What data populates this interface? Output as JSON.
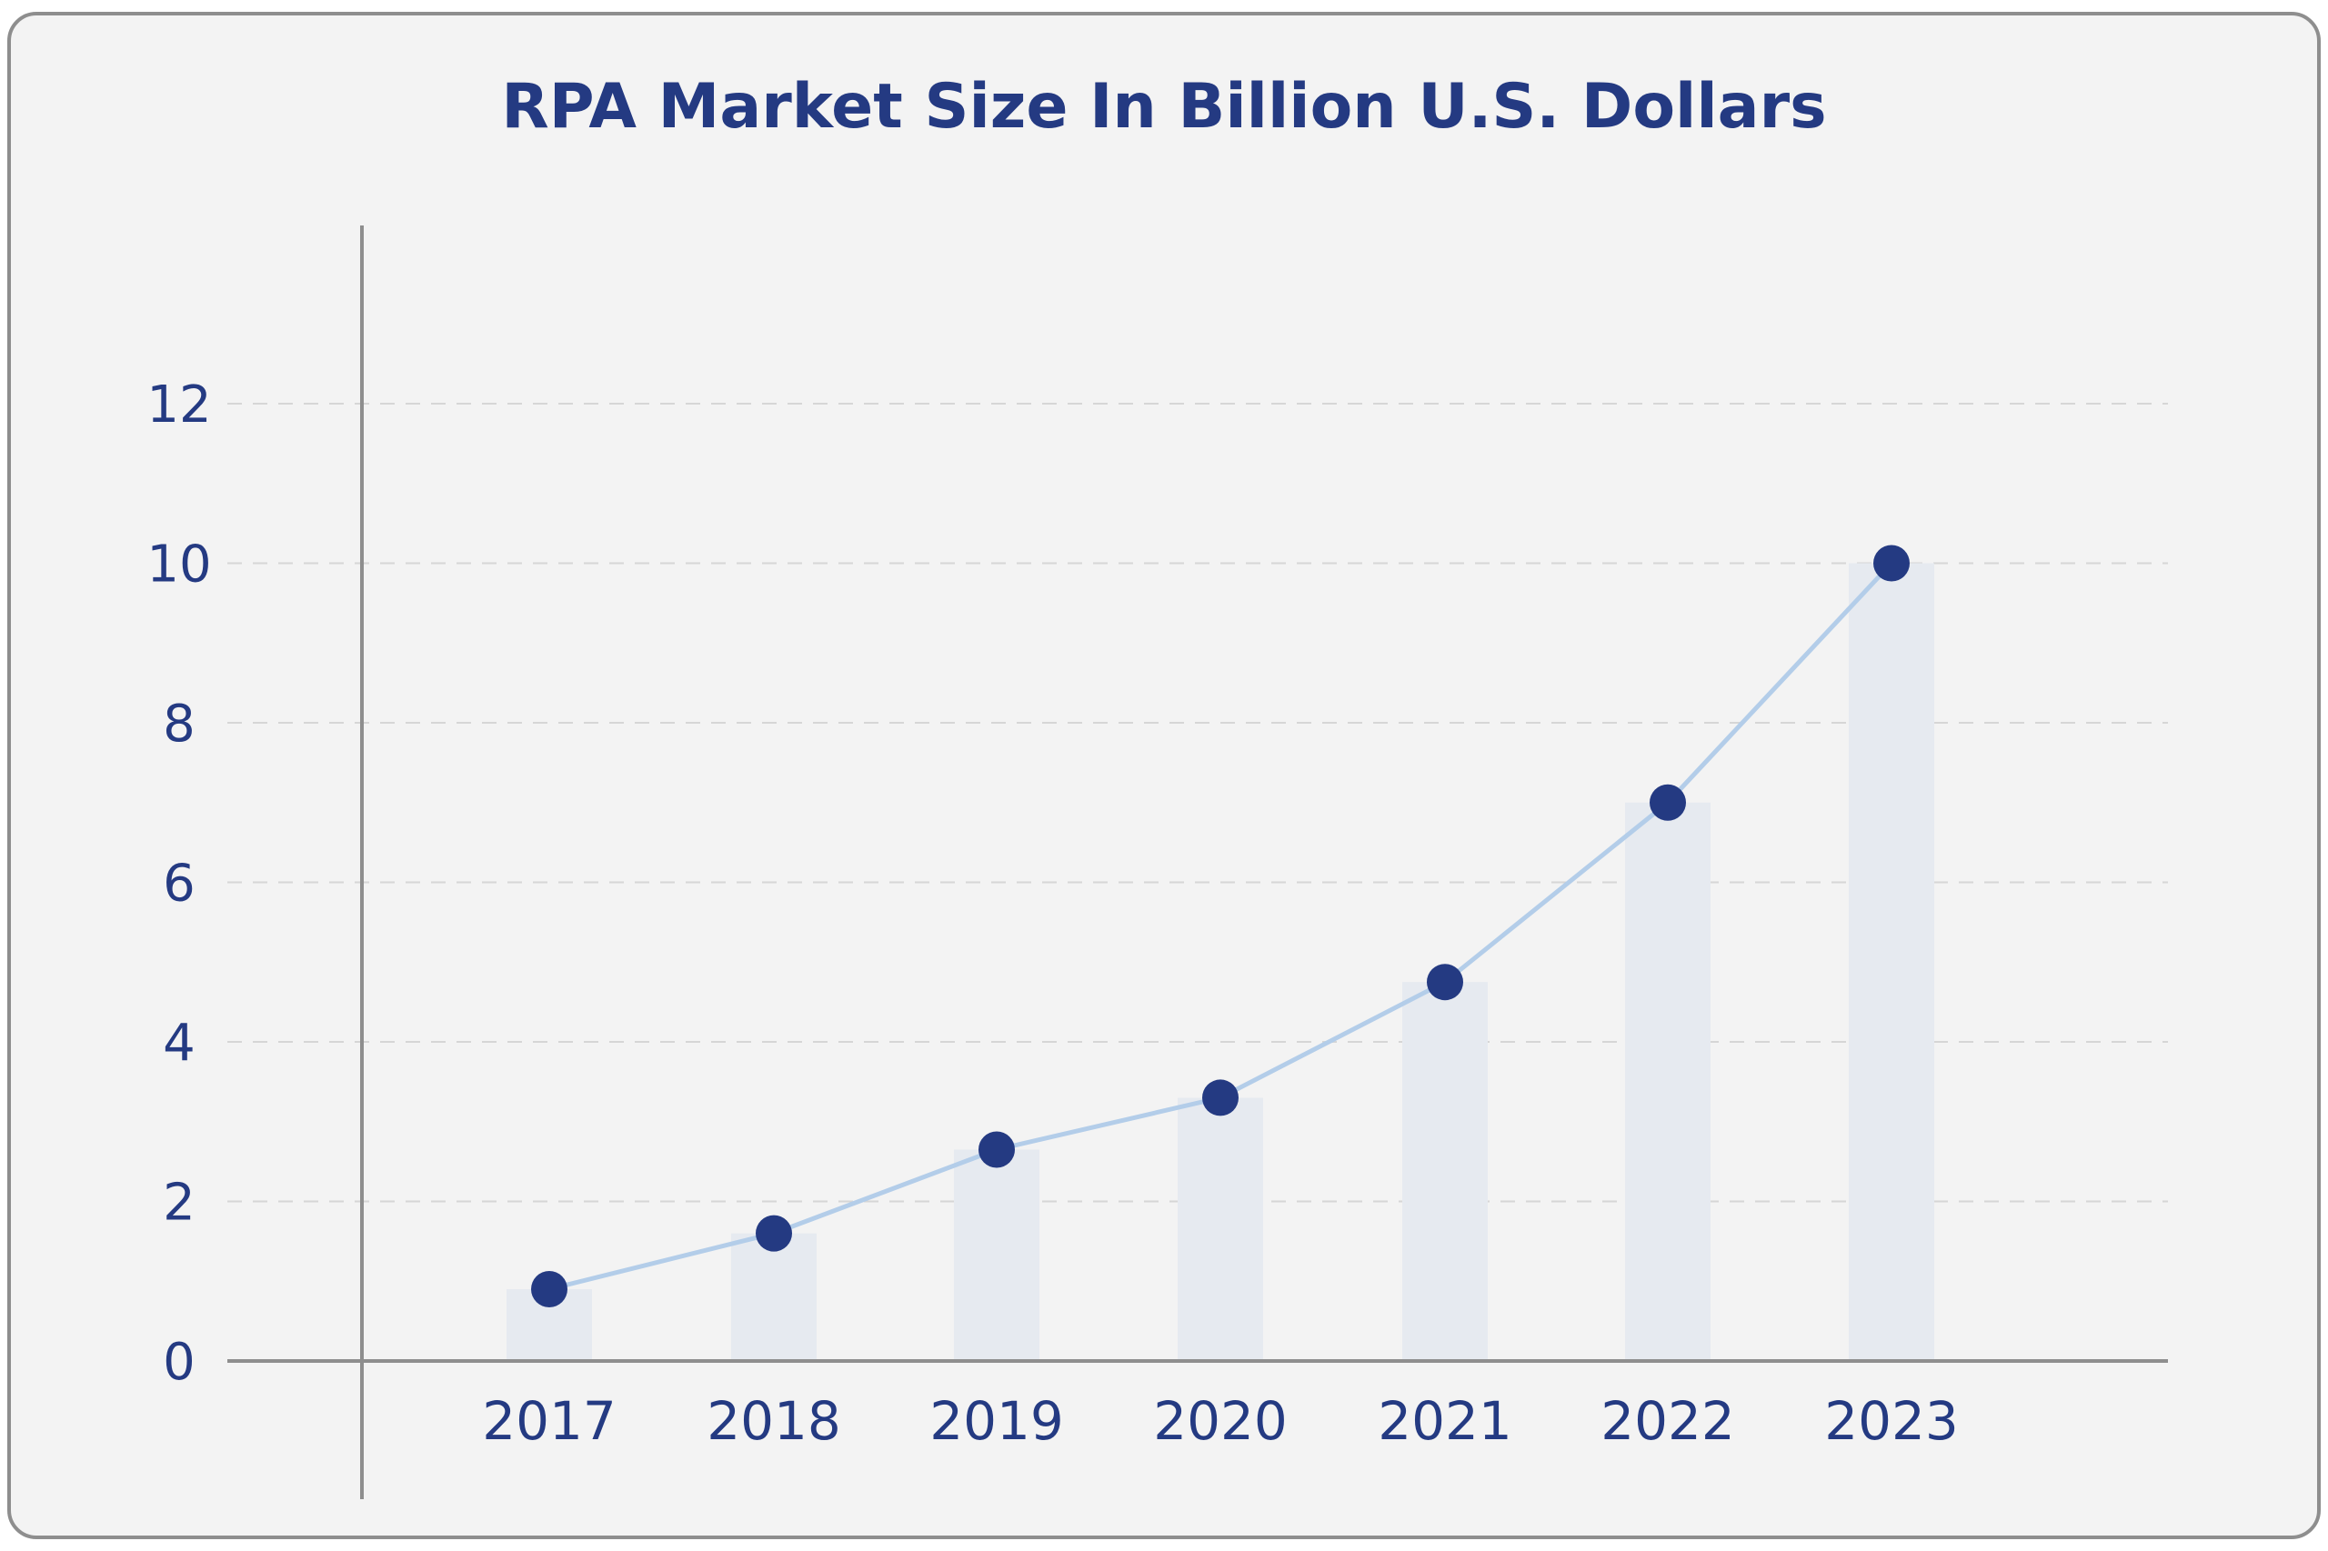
{
  "chart_data": {
    "type": "line",
    "title": "RPA Market Size In Billion U.S. Dollars",
    "xlabel": "",
    "ylabel": "",
    "categories": [
      "2017",
      "2018",
      "2019",
      "2020",
      "2021",
      "2022",
      "2023"
    ],
    "values": [
      0.9,
      1.6,
      2.65,
      3.3,
      4.75,
      7.0,
      10.0
    ],
    "yticks": [
      0,
      2,
      4,
      6,
      8,
      10,
      12
    ],
    "ylim": [
      0,
      12
    ],
    "grid": "horizontal dashed",
    "background_bars": true,
    "colors": {
      "marker": "#243a82",
      "line": "#b3cde9",
      "bar": "#e6eaf0",
      "text": "#243a82",
      "axis": "#8e8e8e"
    }
  }
}
